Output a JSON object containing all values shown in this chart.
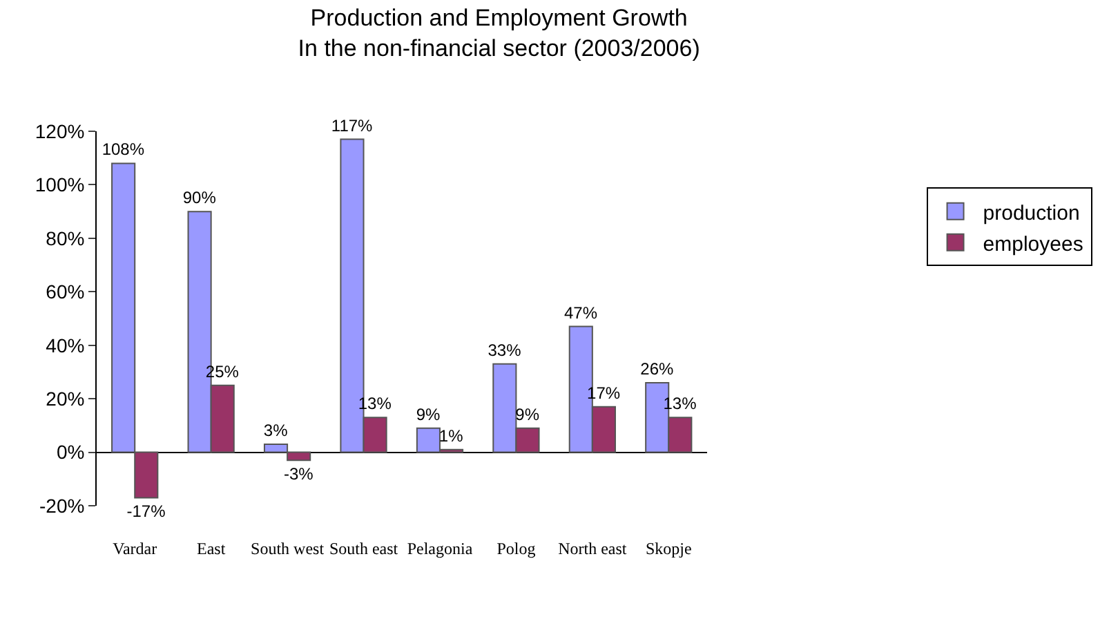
{
  "chart_data": {
    "type": "bar",
    "title": "Production and Employment Growth\nIn the non-financial sector (2003/2006)",
    "categories": [
      "Vardar",
      "East",
      "South west",
      "South east",
      "Pelagonia",
      "Polog",
      "North east",
      "Skopje"
    ],
    "series": [
      {
        "name": "production",
        "color": "#9999ff",
        "values": [
          108,
          90,
          3,
          117,
          9,
          33,
          47,
          26
        ],
        "value_labels": [
          "108%",
          "90%",
          "3%",
          "117%",
          "9%",
          "33%",
          "47%",
          "26%"
        ]
      },
      {
        "name": "employees",
        "color": "#993366",
        "values": [
          -17,
          25,
          -3,
          13,
          1,
          9,
          17,
          13
        ],
        "value_labels": [
          "-17%",
          "25%",
          "-3%",
          "13%",
          "1%",
          "9%",
          "17%",
          "13%"
        ]
      }
    ],
    "ylim": [
      -20,
      120
    ],
    "yticks": [
      {
        "value": -20,
        "label": "-20%"
      },
      {
        "value": 0,
        "label": "0%"
      },
      {
        "value": 20,
        "label": "20%"
      },
      {
        "value": 40,
        "label": "40%"
      },
      {
        "value": 60,
        "label": "60%"
      },
      {
        "value": 80,
        "label": "80%"
      },
      {
        "value": 100,
        "label": "100%"
      },
      {
        "value": 120,
        "label": "120%"
      }
    ],
    "legend": "right"
  }
}
